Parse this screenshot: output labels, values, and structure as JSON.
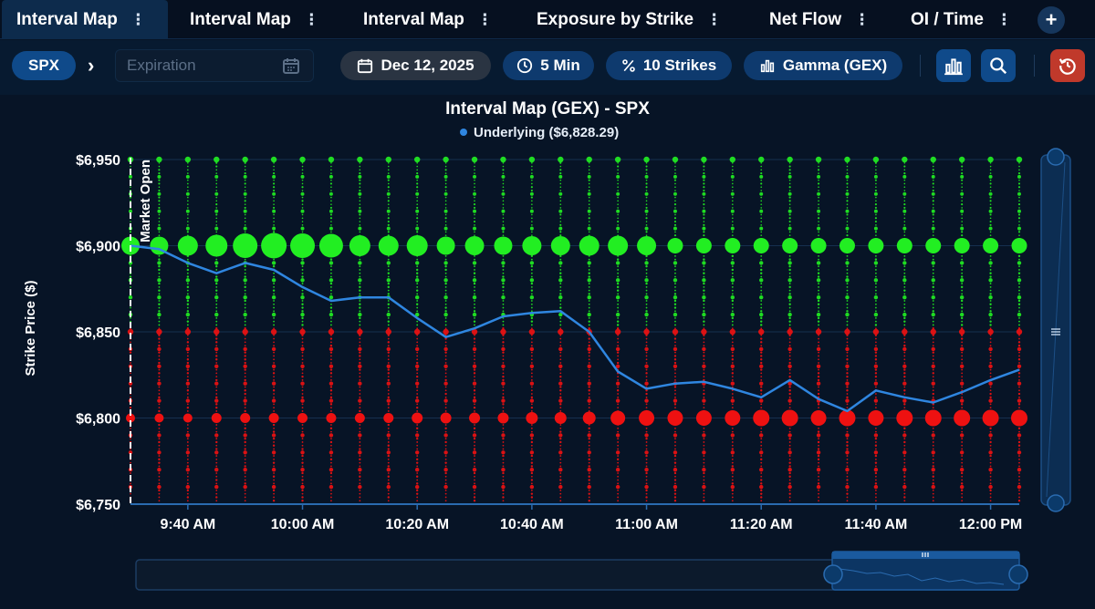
{
  "tabs": [
    {
      "label": "Interval Map",
      "active": true
    },
    {
      "label": "Interval Map",
      "active": false
    },
    {
      "label": "Interval Map",
      "active": false
    },
    {
      "label": "Exposure by Strike",
      "active": false
    },
    {
      "label": "Net Flow",
      "active": false
    },
    {
      "label": "OI / Time",
      "active": false
    }
  ],
  "tab_menu_glyph": "⋮",
  "add_tab_glyph": "+",
  "toolbar": {
    "symbol": "SPX",
    "chevron": "›",
    "expiration_placeholder": "Expiration",
    "date_label": "Dec 12, 2025",
    "interval_label": "5 Min",
    "strikes_label": "10 Strikes",
    "metric_label": "Gamma (GEX)"
  },
  "icons": {
    "calendar": "calendar-icon",
    "clock": "clock-icon",
    "percent": "percent-icon",
    "bars": "bar-chart-icon",
    "search": "search-icon",
    "reset": "history-reset-icon"
  },
  "colors": {
    "positive": "#22ee22",
    "negative": "#ee1111",
    "underlying": "#2f86e0",
    "accent": "#0f4a8a"
  },
  "chart_data": {
    "type": "scatter",
    "title": "Interval Map (GEX) - SPX",
    "legend": [
      {
        "name": "Underlying ($6,828.29)",
        "color": "#2f86e0"
      }
    ],
    "ylabel": "Strike Price ($)",
    "xlabel": "",
    "ylim": [
      6750,
      6950
    ],
    "yticks": [
      {
        "value": 6950,
        "label": "$6,950"
      },
      {
        "value": 6900,
        "label": "$6,900"
      },
      {
        "value": 6850,
        "label": "$6,850"
      },
      {
        "value": 6800,
        "label": "$6,800"
      },
      {
        "value": 6750,
        "label": "$6,750"
      }
    ],
    "xlim_minutes": [
      570,
      725
    ],
    "xticks": [
      {
        "minute": 580,
        "label": "9:40 AM"
      },
      {
        "minute": 600,
        "label": "10:00 AM"
      },
      {
        "minute": 620,
        "label": "10:20 AM"
      },
      {
        "minute": 640,
        "label": "10:40 AM"
      },
      {
        "minute": 660,
        "label": "11:00 AM"
      },
      {
        "minute": 680,
        "label": "11:20 AM"
      },
      {
        "minute": 700,
        "label": "11:40 AM"
      },
      {
        "minute": 720,
        "label": "12:00 PM"
      }
    ],
    "annotation": {
      "label": "Market Open",
      "minute": 570
    },
    "interval_minutes": 5,
    "start_minute": 570,
    "num_intervals": 32,
    "main_strikes": [
      {
        "strike": 6900,
        "sign": "positive",
        "size": [
          1.0,
          1.0,
          1.1,
          1.2,
          1.35,
          1.4,
          1.35,
          1.3,
          1.15,
          1.1,
          1.15,
          1.0,
          1.05,
          1.0,
          1.05,
          1.05,
          1.1,
          1.1,
          1.05,
          0.85,
          0.85,
          0.85,
          0.85,
          0.85,
          0.85,
          0.85,
          0.85,
          0.85,
          0.85,
          0.85,
          0.85,
          0.85
        ]
      },
      {
        "strike": 6800,
        "sign": "negative",
        "size": [
          0.5,
          0.5,
          0.5,
          0.55,
          0.55,
          0.55,
          0.55,
          0.55,
          0.55,
          0.55,
          0.6,
          0.6,
          0.6,
          0.6,
          0.65,
          0.65,
          0.7,
          0.8,
          0.85,
          0.85,
          0.85,
          0.85,
          0.9,
          0.9,
          0.85,
          0.9,
          0.85,
          0.9,
          0.9,
          0.9,
          0.9,
          0.9
        ]
      }
    ],
    "underlying": [
      6900,
      6898,
      6890,
      6884,
      6890,
      6886,
      6876,
      6868,
      6870,
      6870,
      6858,
      6847,
      6852,
      6859,
      6861,
      6862,
      6850,
      6827,
      6817,
      6820,
      6821,
      6817,
      6812,
      6822,
      6811,
      6804,
      6816,
      6812,
      6809,
      6815,
      6822,
      6828
    ]
  }
}
